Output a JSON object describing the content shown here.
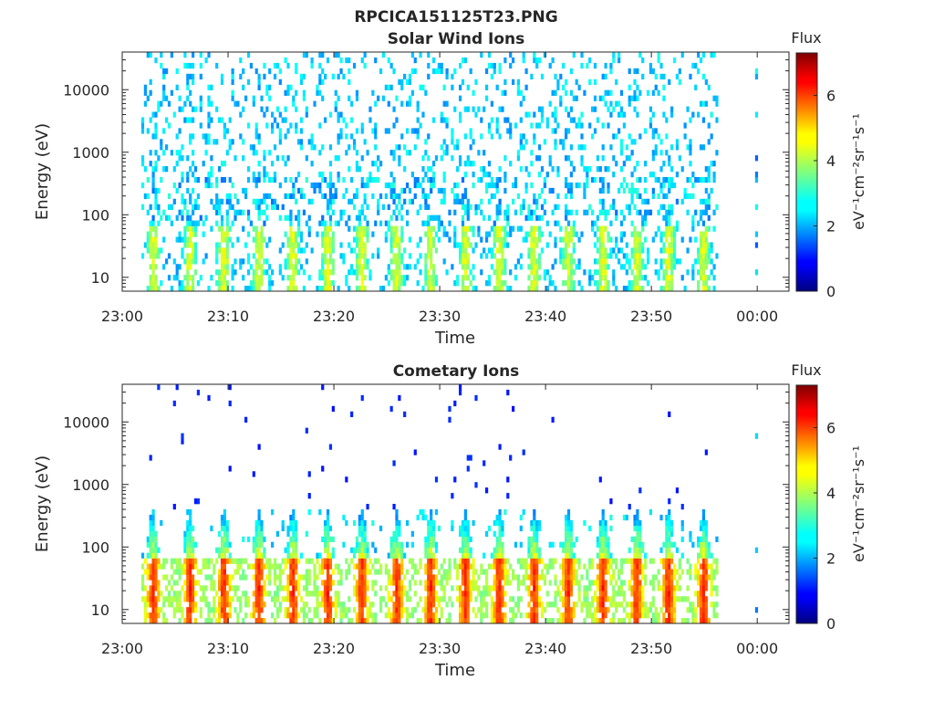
{
  "figure": {
    "title": "RPCICA151125T23.PNG"
  },
  "chart_data": [
    {
      "type": "heatmap",
      "title": "Solar Wind Ions",
      "xlabel": "Time",
      "ylabel": "Energy (eV)",
      "x_ticks": [
        "23:00",
        "23:10",
        "23:20",
        "23:30",
        "23:40",
        "23:50",
        "00:00"
      ],
      "x_range_minutes": [
        0,
        63
      ],
      "y_ticks": [
        "10",
        "100",
        "1000",
        "10000"
      ],
      "y_scale": "log",
      "y_range": [
        6,
        40000
      ],
      "colorbar": {
        "label": "Flux",
        "units": "eV⁻¹cm⁻²sr⁻¹s⁻¹",
        "range": [
          0,
          7.3
        ],
        "ticks": [
          "0",
          "2",
          "4",
          "6"
        ]
      },
      "data_coverage_minutes": [
        1.8,
        56.2
      ],
      "isolated_scan_minute": 59.8,
      "pulse_minutes": [
        2.8,
        6.3,
        9.5,
        12.8,
        16.0,
        19.3,
        22.5,
        25.8,
        29.0,
        32.3,
        35.5,
        38.8,
        42.0,
        45.3,
        48.5,
        51.5,
        54.8
      ],
      "band": {
        "low_energy_peak_value": 4.2,
        "background_value": 2.3
      }
    },
    {
      "type": "heatmap",
      "title": "Cometary Ions",
      "xlabel": "Time",
      "ylabel": "Energy (eV)",
      "x_ticks": [
        "23:00",
        "23:10",
        "23:20",
        "23:30",
        "23:40",
        "23:50",
        "00:00"
      ],
      "x_range_minutes": [
        0,
        63
      ],
      "y_ticks": [
        "10",
        "100",
        "1000",
        "10000"
      ],
      "y_scale": "log",
      "y_range": [
        6,
        40000
      ],
      "colorbar": {
        "label": "Flux",
        "units": "eV⁻¹cm⁻²sr⁻¹s⁻¹",
        "range": [
          0,
          7.3
        ],
        "ticks": [
          "0",
          "2",
          "4",
          "6"
        ]
      },
      "data_coverage_minutes": [
        1.8,
        56.2
      ],
      "isolated_scan_minute": 59.8,
      "pulse_minutes": [
        2.8,
        6.3,
        9.5,
        12.8,
        16.0,
        19.3,
        22.5,
        25.8,
        29.0,
        32.3,
        35.5,
        38.8,
        42.0,
        45.3,
        48.5,
        51.5,
        54.8
      ],
      "band": {
        "peak_value": 6.2,
        "peak_energy_eV": 20,
        "upper_extent_eV": 400,
        "background_value": 1.0
      }
    }
  ]
}
